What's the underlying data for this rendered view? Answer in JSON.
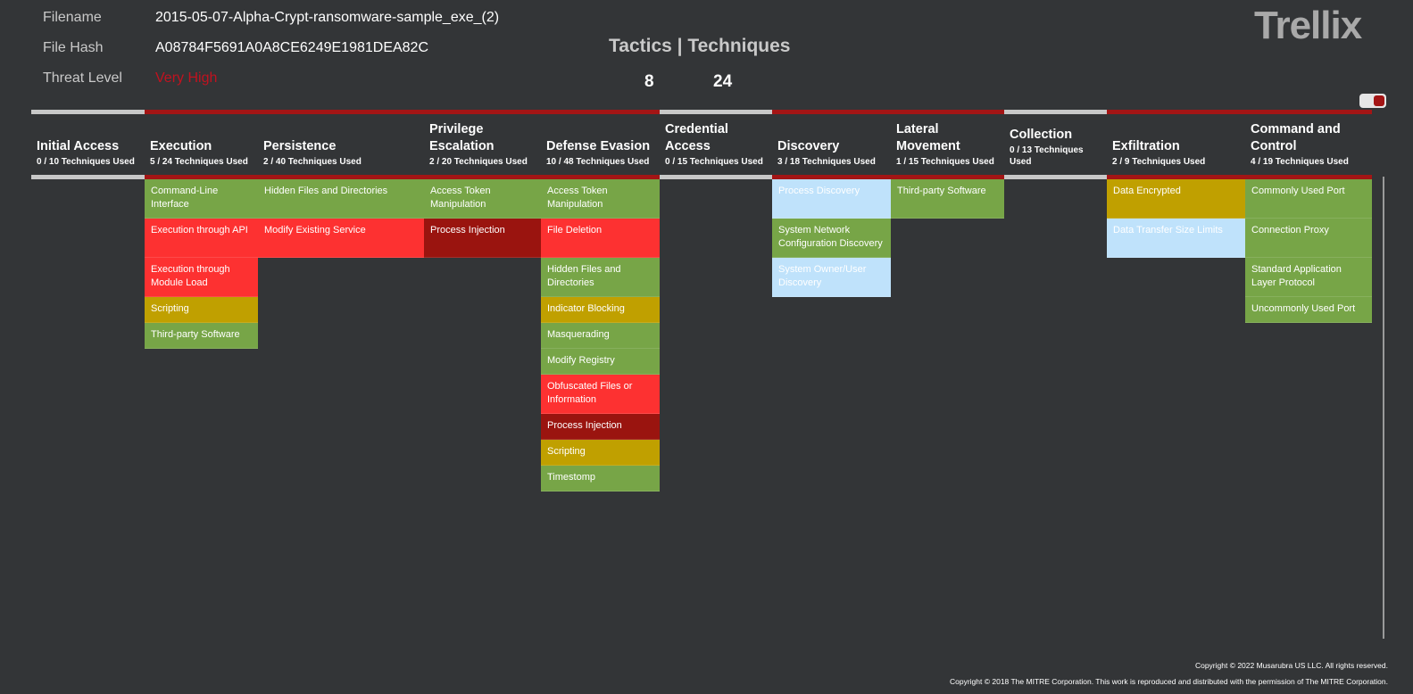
{
  "info": {
    "filename_label": "Filename",
    "filename_value": "2015-05-07-Alpha-Crypt-ransomware-sample_exe_(2)",
    "hash_label": "File Hash",
    "hash_value": "A08784F5691A0A8CE6249E1981DEA82C",
    "threat_label": "Threat Level",
    "threat_value": "Very High"
  },
  "summary": {
    "title": "Tactics | Techniques",
    "tactics": "8",
    "techniques": "24"
  },
  "logo": {
    "text": "Trellix"
  },
  "colors": {
    "green": "#77a547",
    "red": "#fd3131",
    "dark_red": "#9a140f",
    "gold": "#c0a000",
    "light_blue": "#bfe2fb",
    "accent_bar": "#a31515",
    "grey_bar": "#c8c8c8"
  },
  "tactics": [
    {
      "name": "Initial Access",
      "count": "0 / 10 Techniques Used",
      "used": false,
      "techniques": []
    },
    {
      "name": "Execution",
      "count": "5 / 24 Techniques Used",
      "used": true,
      "techniques": [
        {
          "label": "Command-Line Interface",
          "color": "green"
        },
        {
          "label": "Execution through API",
          "color": "red"
        },
        {
          "label": "Execution through Module Load",
          "color": "red"
        },
        {
          "label": "Scripting",
          "color": "gold"
        },
        {
          "label": "Third-party Software",
          "color": "green"
        }
      ]
    },
    {
      "name": "Persistence",
      "count": "2 / 40 Techniques Used",
      "used": true,
      "techniques": [
        {
          "label": "Hidden Files and Directories",
          "color": "green"
        },
        {
          "label": "Modify Existing Service",
          "color": "red"
        }
      ]
    },
    {
      "name": "Privilege Escalation",
      "count": "2 / 20 Techniques Used",
      "used": true,
      "techniques": [
        {
          "label": "Access Token Manipulation",
          "color": "green"
        },
        {
          "label": "Process Injection",
          "color": "dark"
        }
      ]
    },
    {
      "name": "Defense Evasion",
      "count": "10 / 48 Techniques Used",
      "used": true,
      "techniques": [
        {
          "label": "Access Token Manipulation",
          "color": "green"
        },
        {
          "label": "File Deletion",
          "color": "red"
        },
        {
          "label": "Hidden Files and Directories",
          "color": "green"
        },
        {
          "label": "Indicator Blocking",
          "color": "gold"
        },
        {
          "label": "Masquerading",
          "color": "green"
        },
        {
          "label": "Modify Registry",
          "color": "green"
        },
        {
          "label": "Obfuscated Files or Information",
          "color": "red"
        },
        {
          "label": "Process Injection",
          "color": "dark"
        },
        {
          "label": "Scripting",
          "color": "gold"
        },
        {
          "label": "Timestomp",
          "color": "green"
        }
      ]
    },
    {
      "name": "Credential Access",
      "count": "0 / 15 Techniques Used",
      "used": false,
      "techniques": []
    },
    {
      "name": "Discovery",
      "count": "3 / 18 Techniques Used",
      "used": true,
      "techniques": [
        {
          "label": "Process Discovery",
          "color": "blue"
        },
        {
          "label": "System Network Configuration Discovery",
          "color": "green"
        },
        {
          "label": "System Owner/User Discovery",
          "color": "blue"
        }
      ]
    },
    {
      "name": "Lateral Movement",
      "count": "1 / 15 Techniques Used",
      "used": true,
      "techniques": [
        {
          "label": "Third-party Software",
          "color": "green"
        }
      ]
    },
    {
      "name": "Collection",
      "count": "0 / 13 Techniques Used",
      "used": false,
      "techniques": []
    },
    {
      "name": "Exfiltration",
      "count": "2 / 9 Techniques Used",
      "used": true,
      "techniques": [
        {
          "label": "Data Encrypted",
          "color": "gold"
        },
        {
          "label": "Data Transfer Size Limits",
          "color": "blue"
        }
      ]
    },
    {
      "name": "Command and Control",
      "count": "4 / 19 Techniques Used",
      "used": true,
      "techniques": [
        {
          "label": "Commonly Used Port",
          "color": "green"
        },
        {
          "label": "Connection Proxy",
          "color": "green"
        },
        {
          "label": "Standard Application Layer Protocol",
          "color": "green"
        },
        {
          "label": "Uncommonly Used Port",
          "color": "green"
        }
      ]
    }
  ],
  "footer": {
    "line1": "Copyright ©  2022 Musarubra US LLC. All rights reserved.",
    "line2": "Copyright © 2018 The MITRE Corporation. This work is reproduced and distributed with the permission of The MITRE Corporation."
  }
}
